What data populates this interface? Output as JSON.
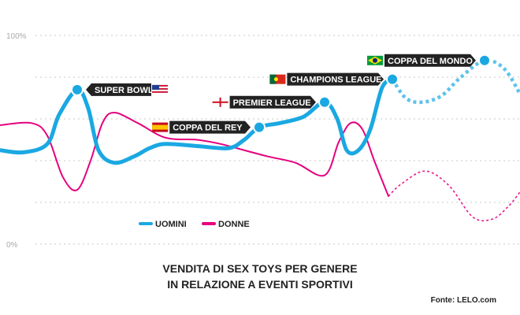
{
  "chart_data": {
    "type": "line",
    "y_ticks": [
      "100%",
      "0%"
    ],
    "ylim": [
      0,
      100
    ],
    "grid": true,
    "legend_position": "bottom-left",
    "title_lines": [
      "VENDITA DI SEX TOYS PER GENERE",
      "IN RELAZIONE A EVENTI SPORTIVI"
    ],
    "source": "Fonte: LELO.com",
    "colors": {
      "men": "#1aa8e2",
      "women": "#e5007e",
      "grid": "#c8c8c8",
      "label_bg": "#222222"
    },
    "events": [
      {
        "label": "SUPER BOWL",
        "flag": "usa-flag",
        "x": 98,
        "y": 74
      },
      {
        "label": "COPPA DEL REY",
        "flag": "spain-flag",
        "x": 329,
        "y": 56
      },
      {
        "label": "PREMIER LEAGUE",
        "flag": "england-flag",
        "x": 412,
        "y": 68
      },
      {
        "label": "CHAMPIONS LEAGUE",
        "flag": "portugal-flag",
        "x": 498,
        "y": 79
      },
      {
        "label": "COPPA DEL MONDO",
        "flag": "brazil-flag",
        "x": 615,
        "y": 88
      }
    ],
    "series": [
      {
        "name": "UOMINI",
        "solid": [
          [
            0,
            45
          ],
          [
            30,
            44
          ],
          [
            60,
            48
          ],
          [
            75,
            62
          ],
          [
            98,
            74
          ],
          [
            112,
            65
          ],
          [
            125,
            45
          ],
          [
            145,
            39
          ],
          [
            170,
            42
          ],
          [
            190,
            46
          ],
          [
            210,
            48
          ],
          [
            250,
            47
          ],
          [
            290,
            46
          ],
          [
            310,
            50
          ],
          [
            329,
            56
          ],
          [
            355,
            58
          ],
          [
            385,
            61
          ],
          [
            412,
            68
          ],
          [
            428,
            60
          ],
          [
            440,
            45
          ],
          [
            455,
            45
          ],
          [
            470,
            55
          ],
          [
            485,
            75
          ],
          [
            498,
            79
          ]
        ],
        "dashed": [
          [
            498,
            79
          ],
          [
            515,
            70
          ],
          [
            535,
            68
          ],
          [
            560,
            71
          ],
          [
            585,
            80
          ],
          [
            615,
            88
          ],
          [
            640,
            84
          ],
          [
            660,
            72
          ]
        ]
      },
      {
        "name": "DONNE",
        "solid": [
          [
            0,
            57
          ],
          [
            40,
            58
          ],
          [
            60,
            52
          ],
          [
            80,
            32
          ],
          [
            98,
            26
          ],
          [
            115,
            40
          ],
          [
            130,
            58
          ],
          [
            145,
            63
          ],
          [
            175,
            58
          ],
          [
            210,
            51
          ],
          [
            250,
            50
          ],
          [
            280,
            48
          ],
          [
            310,
            45
          ],
          [
            340,
            42
          ],
          [
            375,
            39
          ],
          [
            412,
            33
          ],
          [
            430,
            49
          ],
          [
            445,
            58
          ],
          [
            460,
            55
          ],
          [
            475,
            40
          ],
          [
            493,
            23
          ]
        ],
        "dashed": [
          [
            493,
            23
          ],
          [
            510,
            29
          ],
          [
            540,
            35
          ],
          [
            570,
            28
          ],
          [
            600,
            13
          ],
          [
            625,
            12
          ],
          [
            645,
            18
          ],
          [
            660,
            25
          ]
        ]
      }
    ]
  }
}
